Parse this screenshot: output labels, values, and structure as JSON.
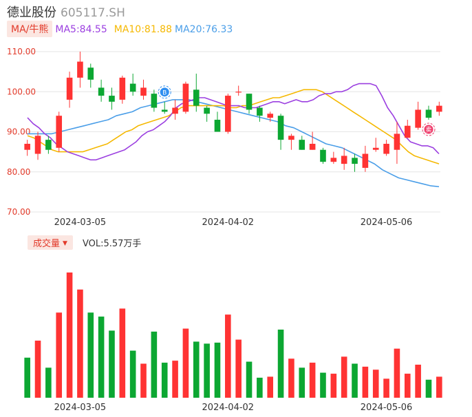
{
  "header": {
    "name": "德业股份",
    "code": "605117.SH"
  },
  "ma_bar": {
    "toggle_label": "MA/牛熊",
    "ma5": "MA5:84.55",
    "ma10": "MA10:81.88",
    "ma20": "MA20:76.33"
  },
  "volume_bar": {
    "toggle_label": "成交量",
    "caret": "▼",
    "vol_text": "VOL:5.57万手"
  },
  "colors": {
    "up": "#ff3333",
    "down": "#0ca732",
    "ma5": "#9b3fe0",
    "ma10": "#f5b800",
    "ma20": "#4a9ee8",
    "accent": "#e23a2a"
  },
  "markers": [
    {
      "icon": "buy-point-icon",
      "glyph": "B",
      "index": 13
    },
    {
      "icon": "sell-point-icon",
      "glyph": "卖",
      "index": 38
    }
  ],
  "chart_data": [
    {
      "type": "candlestick",
      "title": "",
      "ylim": [
        70,
        110
      ],
      "yticks": [
        "70.00",
        "80.00",
        "90.00",
        "100.00",
        "110.00"
      ],
      "x_labels": [
        "2024-03-05",
        "2024-04-02",
        "2024-05-06"
      ],
      "x_label_index": [
        5,
        19,
        34
      ],
      "candles": [
        {
          "o": 85.5,
          "h": 88.0,
          "l": 84.0,
          "c": 87.0
        },
        {
          "o": 84.5,
          "h": 90.0,
          "l": 83.0,
          "c": 89.0
        },
        {
          "o": 88.0,
          "h": 89.0,
          "l": 84.5,
          "c": 85.5
        },
        {
          "o": 86.0,
          "h": 95.0,
          "l": 85.0,
          "c": 94.0
        },
        {
          "o": 98.0,
          "h": 105.0,
          "l": 96.0,
          "c": 103.5
        },
        {
          "o": 103.5,
          "h": 110.0,
          "l": 101.0,
          "c": 107.5
        },
        {
          "o": 106.0,
          "h": 107.0,
          "l": 101.0,
          "c": 103.0
        },
        {
          "o": 101.0,
          "h": 103.0,
          "l": 97.5,
          "c": 99.0
        },
        {
          "o": 99.0,
          "h": 101.0,
          "l": 95.5,
          "c": 97.5
        },
        {
          "o": 98.0,
          "h": 104.0,
          "l": 97.0,
          "c": 103.5
        },
        {
          "o": 102.0,
          "h": 104.5,
          "l": 99.0,
          "c": 100.0
        },
        {
          "o": 99.0,
          "h": 103.0,
          "l": 98.0,
          "c": 101.0
        },
        {
          "o": 99.5,
          "h": 100.5,
          "l": 95.0,
          "c": 96.0
        },
        {
          "o": 95.5,
          "h": 97.5,
          "l": 94.5,
          "c": 95.0
        },
        {
          "o": 94.5,
          "h": 98.0,
          "l": 93.0,
          "c": 96.0
        },
        {
          "o": 95.0,
          "h": 102.5,
          "l": 94.5,
          "c": 102.0
        },
        {
          "o": 100.5,
          "h": 104.5,
          "l": 95.0,
          "c": 96.5
        },
        {
          "o": 96.0,
          "h": 96.5,
          "l": 92.5,
          "c": 94.5
        },
        {
          "o": 93.0,
          "h": 95.0,
          "l": 90.0,
          "c": 90.0
        },
        {
          "o": 90.0,
          "h": 99.5,
          "l": 89.5,
          "c": 99.0
        },
        {
          "o": 100.0,
          "h": 101.5,
          "l": 99.0,
          "c": 100.0
        },
        {
          "o": 99.5,
          "h": 99.5,
          "l": 94.5,
          "c": 95.5
        },
        {
          "o": 96.0,
          "h": 96.5,
          "l": 92.5,
          "c": 94.0
        },
        {
          "o": 93.5,
          "h": 95.0,
          "l": 92.5,
          "c": 94.5
        },
        {
          "o": 94.0,
          "h": 94.5,
          "l": 85.5,
          "c": 88.0
        },
        {
          "o": 88.0,
          "h": 89.5,
          "l": 85.5,
          "c": 89.0
        },
        {
          "o": 88.0,
          "h": 89.0,
          "l": 85.5,
          "c": 85.5
        },
        {
          "o": 85.5,
          "h": 90.0,
          "l": 85.5,
          "c": 87.0
        },
        {
          "o": 85.5,
          "h": 86.0,
          "l": 82.0,
          "c": 82.5
        },
        {
          "o": 82.5,
          "h": 85.0,
          "l": 82.0,
          "c": 83.5
        },
        {
          "o": 82.0,
          "h": 86.0,
          "l": 80.5,
          "c": 84.0
        },
        {
          "o": 83.5,
          "h": 84.5,
          "l": 80.0,
          "c": 82.0
        },
        {
          "o": 81.0,
          "h": 86.5,
          "l": 80.0,
          "c": 84.5
        },
        {
          "o": 85.5,
          "h": 88.5,
          "l": 85.0,
          "c": 86.0
        },
        {
          "o": 84.5,
          "h": 88.0,
          "l": 84.0,
          "c": 87.0
        },
        {
          "o": 85.5,
          "h": 92.5,
          "l": 82.0,
          "c": 89.5
        },
        {
          "o": 88.5,
          "h": 93.0,
          "l": 88.5,
          "c": 91.5
        },
        {
          "o": 91.0,
          "h": 97.5,
          "l": 90.5,
          "c": 95.5
        },
        {
          "o": 95.5,
          "h": 96.5,
          "l": 93.0,
          "c": 93.5
        },
        {
          "o": 95.0,
          "h": 97.5,
          "l": 94.0,
          "c": 96.5
        }
      ],
      "ma5": [
        93.5,
        92.0,
        91.0,
        89.5,
        88.5,
        87.0,
        86.0,
        85.0,
        84.5,
        84.0,
        83.5,
        83.0,
        83.0,
        83.5,
        84.0,
        84.5,
        85.0,
        85.5,
        86.5,
        87.5,
        89.0,
        90.0,
        90.5,
        91.5,
        92.5,
        94.0,
        96.0,
        97.0,
        97.5,
        98.0,
        98.5,
        98.5,
        98.0,
        97.5,
        97.0,
        96.5,
        96.5,
        96.5,
        96.0,
        96.0,
        96.0,
        96.5,
        97.0,
        97.5,
        97.5,
        97.0,
        97.5,
        98.0,
        97.5,
        97.5,
        98.0,
        99.0,
        99.5,
        99.5,
        100.0,
        100.0,
        100.5,
        101.5,
        102.0,
        102.0,
        102.0,
        101.5,
        99.0,
        96.0,
        94.0,
        91.5,
        89.0,
        87.5,
        87.0,
        86.5,
        86.5,
        86.0,
        84.5
      ],
      "ma10": [
        89.0,
        88.5,
        87.5,
        86.5,
        85.5,
        85.0,
        85.0,
        85.0,
        85.0,
        85.0,
        85.5,
        86.0,
        86.5,
        87.0,
        88.0,
        89.0,
        90.0,
        90.5,
        91.5,
        92.0,
        92.5,
        93.0,
        93.5,
        94.0,
        95.0,
        96.0,
        96.5,
        96.5,
        96.5,
        96.5,
        96.5,
        96.5,
        96.5,
        96.0,
        96.0,
        96.5,
        96.5,
        97.0,
        97.5,
        98.0,
        98.5,
        98.5,
        99.0,
        99.5,
        100.0,
        100.5,
        100.5,
        100.5,
        100.0,
        99.0,
        98.0,
        97.0,
        96.0,
        95.0,
        94.0,
        93.0,
        92.0,
        91.0,
        90.0,
        89.0,
        88.0,
        86.5,
        85.0,
        84.0,
        83.5,
        83.0,
        82.5,
        82.0
      ],
      "ma20": [
        89.5,
        89.5,
        89.5,
        89.5,
        90.0,
        90.5,
        91.0,
        91.5,
        92.0,
        92.5,
        93.0,
        94.0,
        94.5,
        95.0,
        96.0,
        96.5,
        97.0,
        97.5,
        98.0,
        98.0,
        98.0,
        97.5,
        97.0,
        96.5,
        96.0,
        95.5,
        95.0,
        94.5,
        94.0,
        93.5,
        93.0,
        92.5,
        91.5,
        91.0,
        90.0,
        89.0,
        88.0,
        87.0,
        86.5,
        86.0,
        85.0,
        84.0,
        83.0,
        82.0,
        80.5,
        79.5,
        78.5,
        78.0,
        77.5,
        77.0,
        76.5,
        76.3
      ],
      "volume": [
        {
          "v": 20.0,
          "up": false
        },
        {
          "v": 28.5,
          "up": true
        },
        {
          "v": 15.0,
          "up": false
        },
        {
          "v": 42.5,
          "up": true
        },
        {
          "v": 62.5,
          "up": true
        },
        {
          "v": 54.0,
          "up": true
        },
        {
          "v": 42.5,
          "up": false
        },
        {
          "v": 40.5,
          "up": false
        },
        {
          "v": 33.5,
          "up": false
        },
        {
          "v": 44.5,
          "up": true
        },
        {
          "v": 23.5,
          "up": false
        },
        {
          "v": 17.0,
          "up": true
        },
        {
          "v": 33.0,
          "up": false
        },
        {
          "v": 17.5,
          "up": false
        },
        {
          "v": 18.5,
          "up": true
        },
        {
          "v": 34.5,
          "up": true
        },
        {
          "v": 28.0,
          "up": false
        },
        {
          "v": 27.0,
          "up": false
        },
        {
          "v": 27.5,
          "up": false
        },
        {
          "v": 41.5,
          "up": true
        },
        {
          "v": 29.0,
          "up": true
        },
        {
          "v": 18.0,
          "up": false
        },
        {
          "v": 10.0,
          "up": false
        },
        {
          "v": 10.5,
          "up": true
        },
        {
          "v": 34.0,
          "up": false
        },
        {
          "v": 19.5,
          "up": true
        },
        {
          "v": 15.0,
          "up": false
        },
        {
          "v": 17.5,
          "up": true
        },
        {
          "v": 12.5,
          "up": false
        },
        {
          "v": 12.0,
          "up": true
        },
        {
          "v": 20.5,
          "up": true
        },
        {
          "v": 17.0,
          "up": false
        },
        {
          "v": 15.5,
          "up": true
        },
        {
          "v": 14.0,
          "up": true
        },
        {
          "v": 9.5,
          "up": true
        },
        {
          "v": 24.5,
          "up": true
        },
        {
          "v": 12.0,
          "up": true
        },
        {
          "v": 16.5,
          "up": true
        },
        {
          "v": 9.0,
          "up": false
        },
        {
          "v": 10.5,
          "up": true
        }
      ]
    }
  ]
}
